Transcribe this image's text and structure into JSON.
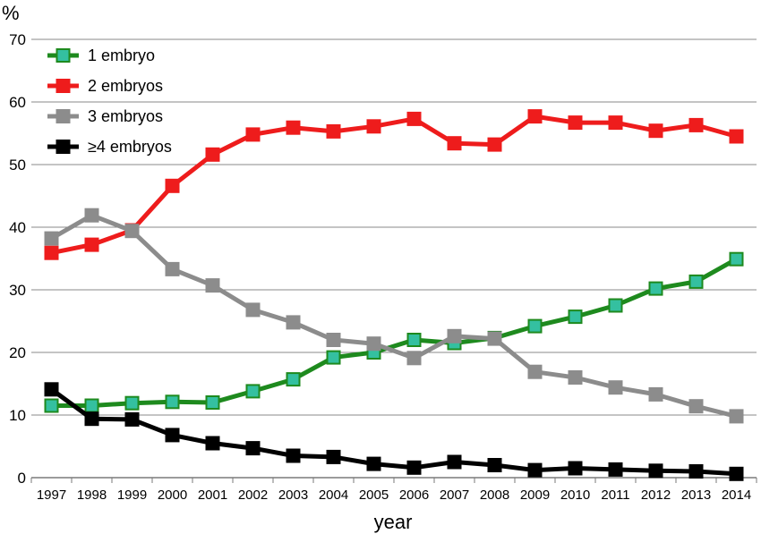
{
  "chart_data": {
    "type": "line",
    "ylabel": "%",
    "xlabel": "year",
    "ylim": [
      0,
      70
    ],
    "yticks": [
      0,
      10,
      20,
      30,
      40,
      50,
      60,
      70
    ],
    "grid": "horizontal",
    "legend_position": "top-left",
    "categories": [
      "1997",
      "1998",
      "1999",
      "2000",
      "2001",
      "2002",
      "2003",
      "2004",
      "2005",
      "2006",
      "2007",
      "2008",
      "2009",
      "2010",
      "2011",
      "2012",
      "2013",
      "2014"
    ],
    "series": [
      {
        "name": "1 embryo",
        "color": "#1e8a1e",
        "marker_color": "#34c0a0",
        "values": [
          11.5,
          11.5,
          11.9,
          12.1,
          12.0,
          13.8,
          15.7,
          19.2,
          20.0,
          22.0,
          21.5,
          22.3,
          24.2,
          25.7,
          27.5,
          30.2,
          31.3,
          34.9
        ]
      },
      {
        "name": "2 embryos",
        "color": "#ee1c1c",
        "marker_color": "#ee1c1c",
        "values": [
          35.9,
          37.2,
          39.5,
          46.6,
          51.6,
          54.8,
          55.9,
          55.3,
          56.1,
          57.3,
          53.4,
          53.2,
          57.7,
          56.7,
          56.7,
          55.4,
          56.3,
          54.5
        ]
      },
      {
        "name": "3 embryos",
        "color": "#8c8c8c",
        "marker_color": "#8c8c8c",
        "values": [
          38.2,
          41.9,
          39.4,
          33.3,
          30.7,
          26.8,
          24.8,
          22.0,
          21.4,
          19.1,
          22.6,
          22.2,
          16.9,
          16.0,
          14.4,
          13.3,
          11.4,
          9.8
        ]
      },
      {
        "name": "≥4 embryos",
        "color": "#000000",
        "marker_color": "#000000",
        "values": [
          14.1,
          9.4,
          9.3,
          6.8,
          5.5,
          4.7,
          3.5,
          3.3,
          2.2,
          1.6,
          2.5,
          2.0,
          1.2,
          1.5,
          1.3,
          1.1,
          1.0,
          0.6
        ]
      }
    ]
  }
}
